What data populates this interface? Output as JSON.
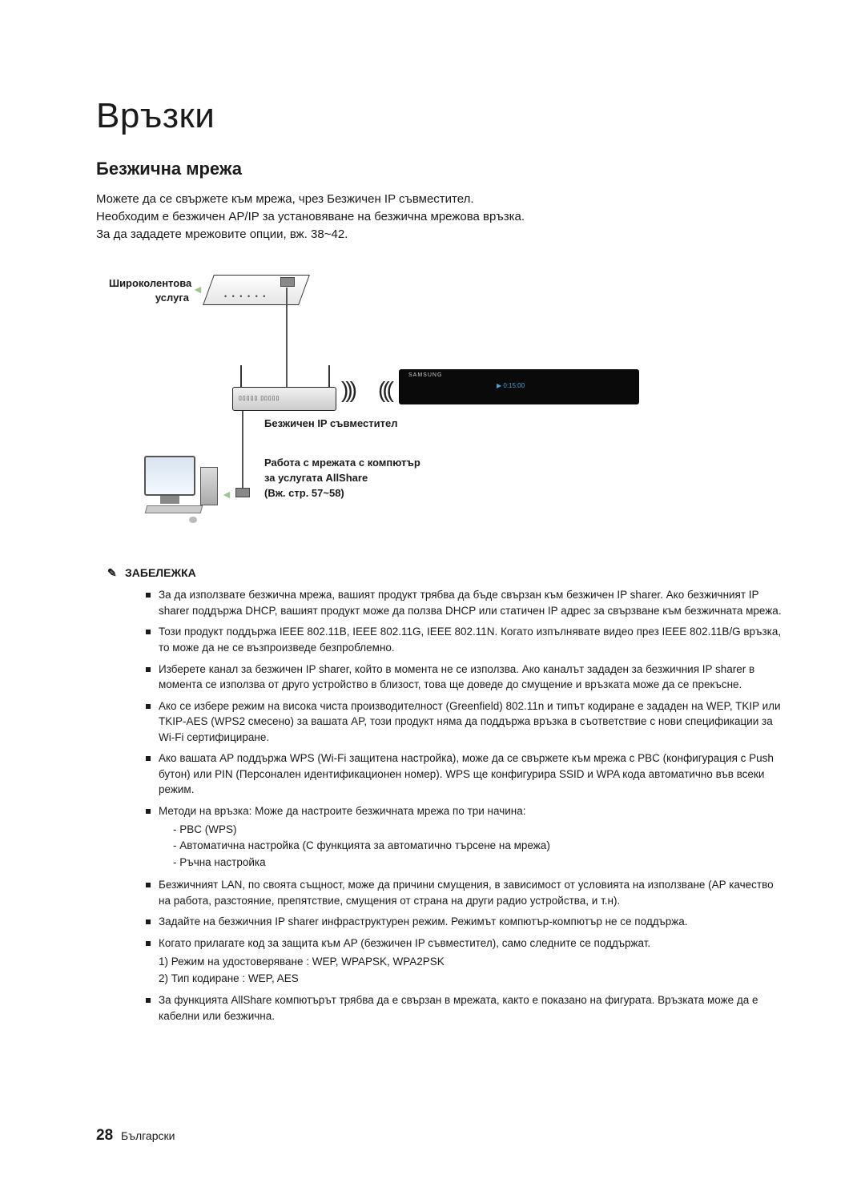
{
  "chapter_title": "Връзки",
  "section_title": "Безжична мрежа",
  "intro": {
    "line1": "Можете да се свържете към мрежа, чрез Безжичен IP съвместител.",
    "line2": "Необходим е безжичен AP/IP за установяване на безжична мрежова връзка.",
    "line3": "За да зададете мрежовите опции, вж. 38~42."
  },
  "diagram": {
    "broadband_label_l1": "Широколентова",
    "broadband_label_l2": "услуга",
    "router_label": "Безжичен IP съвместител",
    "pc_label_l1": "Работа с мрежата с компютър",
    "pc_label_l2": "за услугата AllShare",
    "pc_label_l3": "(Вж. стр. 57~58)",
    "device_brand": "SAMSUNG",
    "device_display": "▶ 0:15:00"
  },
  "note_heading": "ЗАБЕЛЕЖКА",
  "notes": [
    "За да използвате безжична мрежа, вашият продукт трябва да бъде свързан към безжичен IP sharer. Ако безжичният IP sharer поддържа DHCP, вашият продукт може да ползва DHCP или статичен IP адрес за свързване към безжичната мрежа.",
    "Този продукт поддържа IEEE 802.11B, IEEE 802.11G, IEEE 802.11N. Когато изпълнявате видео през IEEE 802.11B/G връзка, то може да не се възпроизведе безпроблемно.",
    "Изберете канал за безжичен IP sharer, който в момента не се използва. Ако каналът зададен за безжичния IP sharer в момента се използва от друго устройство в близост, това ще доведе до смущение и връзката може да се прекъсне.",
    "Ако се избере режим на висока чиста производителност (Greenfield) 802.11n и типът кодиране е зададен на WEP, TKIP или TKIP-AES (WPS2 смесено) за вашата AP, този продукт няма да поддържа връзка в съответствие с нови спецификации за Wi-Fi сертифициране.",
    "Ако вашата AP поддържа WPS (Wi-Fi защитена настройка), може да се свържете към мрежа с PBC (конфигурация с Push бутон) или PIN (Персонален идентификационен номер). WPS ще конфигурира SSID и WPA кода автоматично във всеки режим."
  ],
  "note_methods": "Методи на връзка: Може да настроите безжичната мрежа по три начина:",
  "methods_sub": [
    "-  PBC (WPS)",
    "-  Автоматична настройка (С функцията за автоматично търсене на мрежа)",
    "-  Ръчна настройка"
  ],
  "notes2": [
    "Безжичният LAN, по своята същност, може да причини смущения, в зависимост от условията на използване (AP качество на работа, разстояние, препятствие, смущения от страна на други радио устройства, и т.н).",
    "Задайте на безжичния IP sharer инфраструктурен режим. Режимът компютър-компютър не се поддържа."
  ],
  "note_security": "Когато прилагате код за защита към AP (безжичен IP съвместител), само следните се поддържат.",
  "security_sub": [
    "1)  Режим на удостоверяване : WEP, WPAPSK, WPA2PSK",
    "2)  Тип кодиране : WEP, AES"
  ],
  "note_allshare": "За функцията AllShare компютърът трябва да е свързан в мрежата, както е показано на фигурата. Връзката може да е кабелни или безжична.",
  "footer": {
    "page": "28",
    "lang": "Български"
  }
}
